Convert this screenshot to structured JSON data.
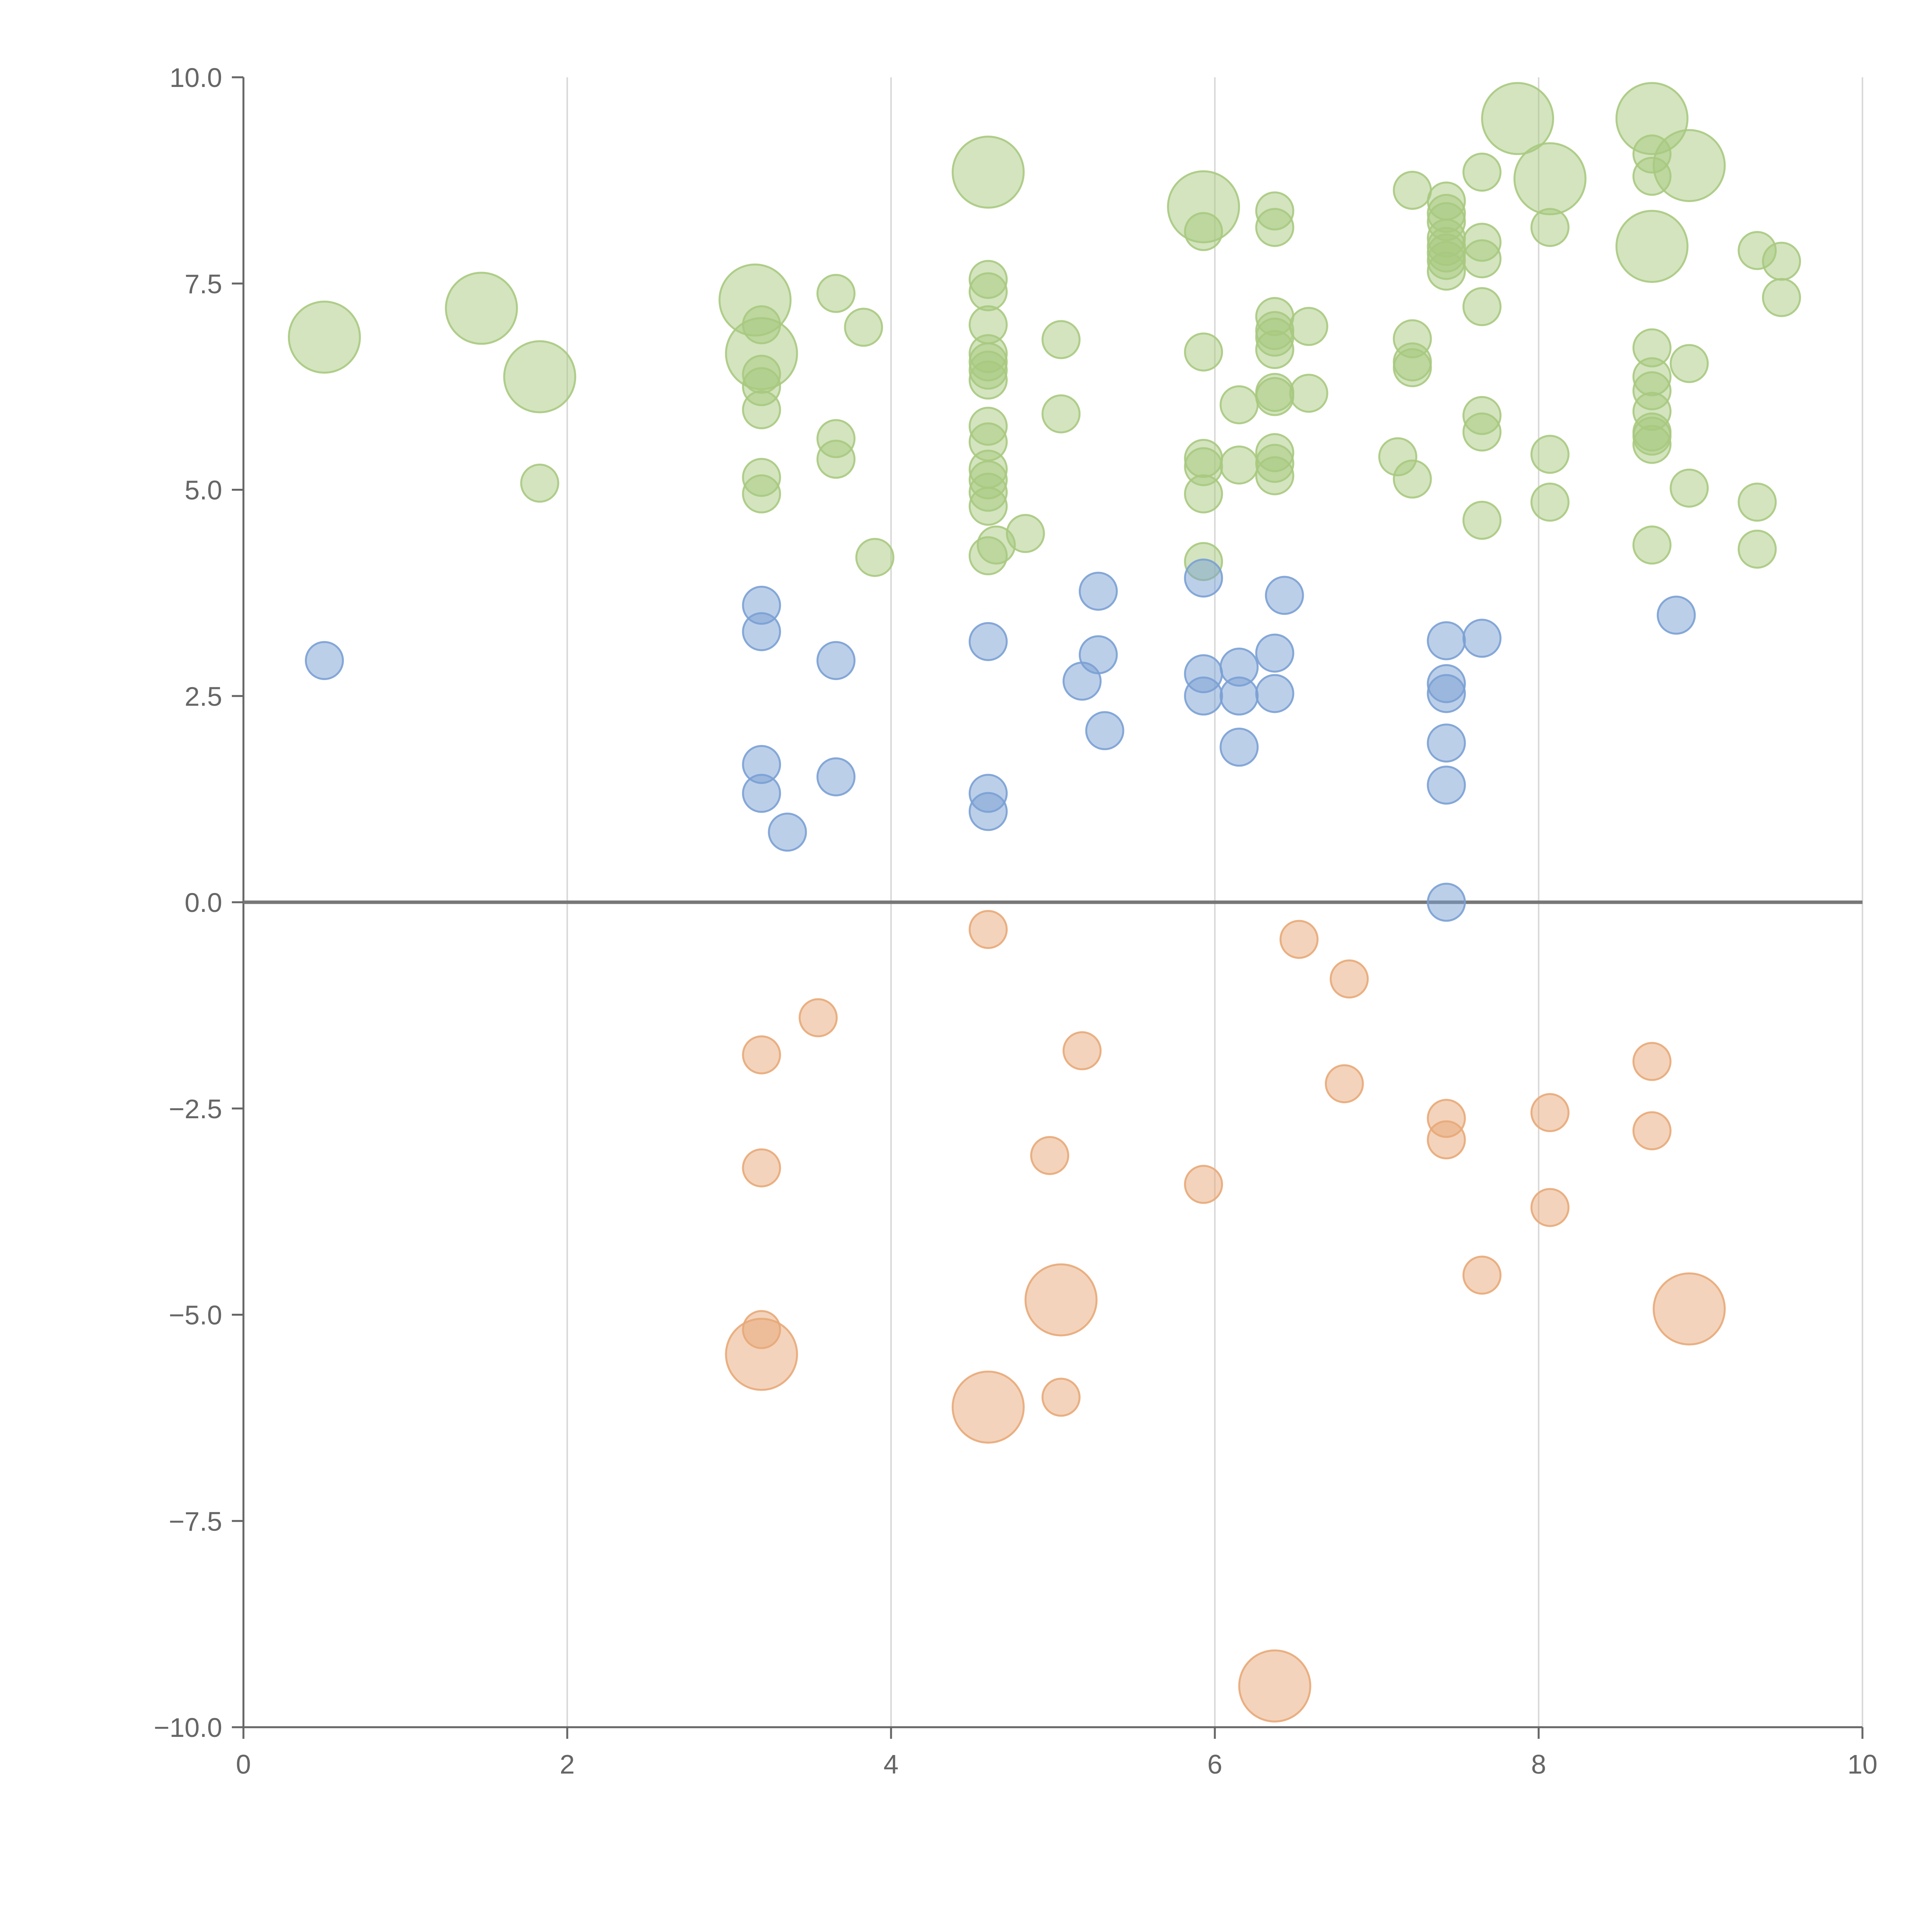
{
  "colors": {
    "positive_large": "#a8c97f",
    "positive_small": "#7aa0d4",
    "negative": "#e8a878",
    "axis": "#666666",
    "zero_line": "#777777",
    "grid": "#d9d9d9"
  },
  "chart_data": {
    "type": "scatter",
    "title": "",
    "xlabel": "",
    "ylabel": "",
    "xlim": [
      0,
      10
    ],
    "ylim": [
      -10,
      10
    ],
    "grid": "vertical",
    "x_ticks": [
      "0",
      "2",
      "4",
      "6",
      "8",
      "10"
    ],
    "y_ticks": [
      "10.0",
      "7.5",
      "5.0",
      "2.5",
      "0.0",
      "−2.5",
      "−5.0",
      "−7.5",
      "−10.0"
    ],
    "series": [
      {
        "color": "#a8c97f",
        "points": [
          {
            "x": 0.5,
            "y": 6.85,
            "r": 2
          },
          {
            "x": 1.47,
            "y": 7.2,
            "r": 2
          },
          {
            "x": 1.83,
            "y": 6.37,
            "r": 2
          },
          {
            "x": 1.83,
            "y": 5.08,
            "r": 1
          },
          {
            "x": 3.16,
            "y": 7.3,
            "r": 2
          },
          {
            "x": 3.2,
            "y": 7.0,
            "r": 1
          },
          {
            "x": 3.2,
            "y": 6.65,
            "r": 2
          },
          {
            "x": 3.2,
            "y": 6.4,
            "r": 1
          },
          {
            "x": 3.2,
            "y": 6.25,
            "r": 1
          },
          {
            "x": 3.2,
            "y": 5.97,
            "r": 1
          },
          {
            "x": 3.2,
            "y": 5.15,
            "r": 1
          },
          {
            "x": 3.2,
            "y": 4.95,
            "r": 1
          },
          {
            "x": 3.66,
            "y": 7.38,
            "r": 1
          },
          {
            "x": 3.83,
            "y": 6.97,
            "r": 1
          },
          {
            "x": 3.66,
            "y": 5.62,
            "r": 1
          },
          {
            "x": 3.66,
            "y": 5.37,
            "r": 1
          },
          {
            "x": 3.9,
            "y": 4.18,
            "r": 1
          },
          {
            "x": 4.6,
            "y": 8.85,
            "r": 2
          },
          {
            "x": 4.6,
            "y": 7.55,
            "r": 1
          },
          {
            "x": 4.6,
            "y": 7.4,
            "r": 1
          },
          {
            "x": 4.6,
            "y": 7.0,
            "r": 1
          },
          {
            "x": 4.6,
            "y": 6.65,
            "r": 1
          },
          {
            "x": 4.6,
            "y": 6.55,
            "r": 1
          },
          {
            "x": 4.6,
            "y": 6.45,
            "r": 1
          },
          {
            "x": 4.6,
            "y": 6.33,
            "r": 1
          },
          {
            "x": 4.6,
            "y": 5.77,
            "r": 1
          },
          {
            "x": 4.6,
            "y": 5.58,
            "r": 1
          },
          {
            "x": 4.6,
            "y": 5.25,
            "r": 1
          },
          {
            "x": 4.6,
            "y": 5.12,
            "r": 1
          },
          {
            "x": 4.6,
            "y": 4.97,
            "r": 1
          },
          {
            "x": 4.6,
            "y": 4.8,
            "r": 1
          },
          {
            "x": 4.6,
            "y": 4.2,
            "r": 1
          },
          {
            "x": 4.65,
            "y": 4.33,
            "r": 1
          },
          {
            "x": 4.83,
            "y": 4.47,
            "r": 1
          },
          {
            "x": 5.05,
            "y": 6.82,
            "r": 1
          },
          {
            "x": 5.05,
            "y": 5.92,
            "r": 1
          },
          {
            "x": 5.93,
            "y": 8.43,
            "r": 2
          },
          {
            "x": 5.93,
            "y": 8.13,
            "r": 1
          },
          {
            "x": 5.93,
            "y": 6.67,
            "r": 1
          },
          {
            "x": 5.93,
            "y": 5.38,
            "r": 1
          },
          {
            "x": 5.93,
            "y": 5.28,
            "r": 1
          },
          {
            "x": 5.93,
            "y": 4.95,
            "r": 1
          },
          {
            "x": 5.93,
            "y": 4.13,
            "r": 1
          },
          {
            "x": 6.15,
            "y": 6.03,
            "r": 1
          },
          {
            "x": 6.15,
            "y": 5.3,
            "r": 1
          },
          {
            "x": 6.37,
            "y": 8.38,
            "r": 1
          },
          {
            "x": 6.37,
            "y": 8.18,
            "r": 1
          },
          {
            "x": 6.37,
            "y": 7.1,
            "r": 1
          },
          {
            "x": 6.37,
            "y": 6.93,
            "r": 1
          },
          {
            "x": 6.37,
            "y": 6.85,
            "r": 1
          },
          {
            "x": 6.37,
            "y": 6.7,
            "r": 1
          },
          {
            "x": 6.37,
            "y": 6.18,
            "r": 1
          },
          {
            "x": 6.37,
            "y": 6.13,
            "r": 1
          },
          {
            "x": 6.37,
            "y": 5.45,
            "r": 1
          },
          {
            "x": 6.37,
            "y": 5.32,
            "r": 1
          },
          {
            "x": 6.37,
            "y": 5.17,
            "r": 1
          },
          {
            "x": 6.58,
            "y": 6.98,
            "r": 1
          },
          {
            "x": 6.58,
            "y": 6.17,
            "r": 1
          },
          {
            "x": 7.22,
            "y": 8.63,
            "r": 1
          },
          {
            "x": 7.22,
            "y": 6.83,
            "r": 1
          },
          {
            "x": 7.22,
            "y": 6.55,
            "r": 1
          },
          {
            "x": 7.22,
            "y": 6.48,
            "r": 1
          },
          {
            "x": 7.13,
            "y": 5.4,
            "r": 1
          },
          {
            "x": 7.22,
            "y": 5.13,
            "r": 1
          },
          {
            "x": 7.43,
            "y": 8.5,
            "r": 1
          },
          {
            "x": 7.43,
            "y": 8.35,
            "r": 1
          },
          {
            "x": 7.43,
            "y": 8.25,
            "r": 1
          },
          {
            "x": 7.43,
            "y": 8.05,
            "r": 1
          },
          {
            "x": 7.43,
            "y": 7.95,
            "r": 1
          },
          {
            "x": 7.43,
            "y": 7.87,
            "r": 1
          },
          {
            "x": 7.43,
            "y": 7.78,
            "r": 1
          },
          {
            "x": 7.43,
            "y": 7.65,
            "r": 1
          },
          {
            "x": 7.65,
            "y": 8.85,
            "r": 1
          },
          {
            "x": 7.65,
            "y": 8.0,
            "r": 1
          },
          {
            "x": 7.65,
            "y": 7.8,
            "r": 1
          },
          {
            "x": 7.65,
            "y": 7.22,
            "r": 1
          },
          {
            "x": 7.65,
            "y": 5.9,
            "r": 1
          },
          {
            "x": 7.65,
            "y": 5.7,
            "r": 1
          },
          {
            "x": 7.65,
            "y": 4.63,
            "r": 1
          },
          {
            "x": 7.87,
            "y": 9.5,
            "r": 2
          },
          {
            "x": 8.07,
            "y": 8.77,
            "r": 2
          },
          {
            "x": 8.07,
            "y": 8.18,
            "r": 1
          },
          {
            "x": 8.07,
            "y": 5.43,
            "r": 1
          },
          {
            "x": 8.07,
            "y": 4.85,
            "r": 1
          },
          {
            "x": 8.7,
            "y": 9.5,
            "r": 2
          },
          {
            "x": 8.7,
            "y": 9.07,
            "r": 1
          },
          {
            "x": 8.7,
            "y": 8.8,
            "r": 1
          },
          {
            "x": 8.93,
            "y": 8.93,
            "r": 2
          },
          {
            "x": 8.7,
            "y": 7.95,
            "r": 2
          },
          {
            "x": 8.7,
            "y": 6.72,
            "r": 1
          },
          {
            "x": 8.7,
            "y": 6.37,
            "r": 1
          },
          {
            "x": 8.7,
            "y": 6.2,
            "r": 1
          },
          {
            "x": 8.7,
            "y": 5.95,
            "r": 1
          },
          {
            "x": 8.7,
            "y": 5.7,
            "r": 1
          },
          {
            "x": 8.7,
            "y": 5.65,
            "r": 1
          },
          {
            "x": 8.7,
            "y": 5.55,
            "r": 1
          },
          {
            "x": 8.7,
            "y": 4.33,
            "r": 1
          },
          {
            "x": 8.93,
            "y": 6.53,
            "r": 1
          },
          {
            "x": 8.93,
            "y": 5.02,
            "r": 1
          },
          {
            "x": 9.35,
            "y": 7.9,
            "r": 1
          },
          {
            "x": 9.5,
            "y": 7.77,
            "r": 1
          },
          {
            "x": 9.5,
            "y": 7.33,
            "r": 1
          },
          {
            "x": 9.35,
            "y": 4.85,
            "r": 1
          },
          {
            "x": 9.35,
            "y": 4.28,
            "r": 1
          }
        ]
      },
      {
        "color": "#7aa0d4",
        "points": [
          {
            "x": 0.5,
            "y": 2.93,
            "r": 1
          },
          {
            "x": 3.2,
            "y": 3.6,
            "r": 1
          },
          {
            "x": 3.2,
            "y": 3.28,
            "r": 1
          },
          {
            "x": 3.2,
            "y": 1.67,
            "r": 1
          },
          {
            "x": 3.2,
            "y": 1.32,
            "r": 1
          },
          {
            "x": 3.36,
            "y": 0.85,
            "r": 1
          },
          {
            "x": 3.66,
            "y": 2.93,
            "r": 1
          },
          {
            "x": 3.66,
            "y": 1.52,
            "r": 1
          },
          {
            "x": 4.6,
            "y": 3.16,
            "r": 1
          },
          {
            "x": 4.6,
            "y": 1.32,
            "r": 1
          },
          {
            "x": 4.6,
            "y": 1.1,
            "r": 1
          },
          {
            "x": 5.18,
            "y": 2.68,
            "r": 1
          },
          {
            "x": 5.28,
            "y": 3.77,
            "r": 1
          },
          {
            "x": 5.28,
            "y": 3.0,
            "r": 1
          },
          {
            "x": 5.32,
            "y": 2.08,
            "r": 1
          },
          {
            "x": 5.93,
            "y": 3.93,
            "r": 1
          },
          {
            "x": 5.93,
            "y": 2.77,
            "r": 1
          },
          {
            "x": 5.93,
            "y": 2.5,
            "r": 1
          },
          {
            "x": 6.15,
            "y": 2.85,
            "r": 1
          },
          {
            "x": 6.15,
            "y": 2.5,
            "r": 1
          },
          {
            "x": 6.15,
            "y": 1.88,
            "r": 1
          },
          {
            "x": 6.37,
            "y": 3.02,
            "r": 1
          },
          {
            "x": 6.37,
            "y": 2.53,
            "r": 1
          },
          {
            "x": 6.43,
            "y": 3.72,
            "r": 1
          },
          {
            "x": 7.43,
            "y": 3.17,
            "r": 1
          },
          {
            "x": 7.43,
            "y": 2.65,
            "r": 1
          },
          {
            "x": 7.43,
            "y": 2.53,
            "r": 1
          },
          {
            "x": 7.43,
            "y": 1.93,
            "r": 1
          },
          {
            "x": 7.43,
            "y": 1.42,
            "r": 1
          },
          {
            "x": 7.43,
            "y": 0.0,
            "r": 1
          },
          {
            "x": 7.65,
            "y": 3.2,
            "r": 1
          },
          {
            "x": 8.85,
            "y": 3.48,
            "r": 1
          }
        ]
      },
      {
        "color": "#e8a878",
        "points": [
          {
            "x": 3.2,
            "y": -1.85,
            "r": 1
          },
          {
            "x": 3.2,
            "y": -3.22,
            "r": 1
          },
          {
            "x": 3.2,
            "y": -5.18,
            "r": 1
          },
          {
            "x": 3.2,
            "y": -5.48,
            "r": 2
          },
          {
            "x": 3.55,
            "y": -1.4,
            "r": 1
          },
          {
            "x": 4.6,
            "y": -0.33,
            "r": 1
          },
          {
            "x": 4.6,
            "y": -6.12,
            "r": 2
          },
          {
            "x": 4.98,
            "y": -3.07,
            "r": 1
          },
          {
            "x": 5.05,
            "y": -4.82,
            "r": 2
          },
          {
            "x": 5.05,
            "y": -6.0,
            "r": 1
          },
          {
            "x": 5.18,
            "y": -1.8,
            "r": 1
          },
          {
            "x": 5.93,
            "y": -3.42,
            "r": 1
          },
          {
            "x": 6.37,
            "y": -9.5,
            "r": 2
          },
          {
            "x": 6.52,
            "y": -0.45,
            "r": 1
          },
          {
            "x": 6.8,
            "y": -2.2,
            "r": 1
          },
          {
            "x": 6.83,
            "y": -0.93,
            "r": 1
          },
          {
            "x": 7.43,
            "y": -2.62,
            "r": 1
          },
          {
            "x": 7.43,
            "y": -2.88,
            "r": 1
          },
          {
            "x": 7.65,
            "y": -4.52,
            "r": 1
          },
          {
            "x": 8.07,
            "y": -2.55,
            "r": 1
          },
          {
            "x": 8.07,
            "y": -3.7,
            "r": 1
          },
          {
            "x": 8.7,
            "y": -1.93,
            "r": 1
          },
          {
            "x": 8.7,
            "y": -2.77,
            "r": 1
          },
          {
            "x": 8.93,
            "y": -4.93,
            "r": 2
          }
        ]
      }
    ]
  }
}
